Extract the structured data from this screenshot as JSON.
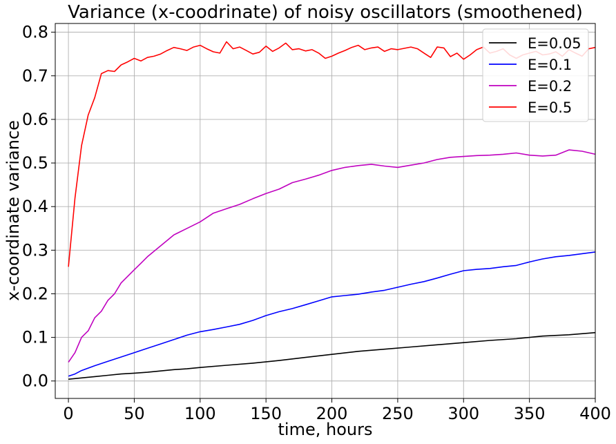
{
  "chart_data": {
    "type": "line",
    "title": "Variance (x-coodrinate) of noisy oscillators (smoothened)",
    "xlabel": "time, hours",
    "ylabel": "x-coordinate variance",
    "xlim": [
      -10,
      400
    ],
    "ylim": [
      -0.04,
      0.82
    ],
    "xticks": [
      0,
      50,
      100,
      150,
      200,
      250,
      300,
      350,
      400
    ],
    "yticks": [
      0.0,
      0.1,
      0.2,
      0.3,
      0.4,
      0.5,
      0.6,
      0.7,
      0.8
    ],
    "xtick_labels": [
      "0",
      "50",
      "100",
      "150",
      "200",
      "250",
      "300",
      "350",
      "400"
    ],
    "ytick_labels": [
      "0.0",
      "0.1",
      "0.2",
      "0.3",
      "0.4",
      "0.5",
      "0.6",
      "0.7",
      "0.8"
    ],
    "grid": true,
    "legend_position": "top-right",
    "series": [
      {
        "name": "E=0.05",
        "color": "#000000",
        "x": [
          0,
          10,
          20,
          30,
          40,
          50,
          60,
          70,
          80,
          90,
          100,
          120,
          140,
          160,
          180,
          200,
          220,
          240,
          260,
          280,
          300,
          320,
          340,
          360,
          380,
          400
        ],
        "y": [
          0.004,
          0.007,
          0.01,
          0.013,
          0.016,
          0.018,
          0.02,
          0.023,
          0.026,
          0.028,
          0.031,
          0.036,
          0.041,
          0.047,
          0.054,
          0.061,
          0.068,
          0.073,
          0.078,
          0.083,
          0.088,
          0.093,
          0.097,
          0.103,
          0.106,
          0.111
        ]
      },
      {
        "name": "E=0.1",
        "color": "#0000ff",
        "x": [
          0,
          5,
          10,
          20,
          30,
          40,
          50,
          60,
          70,
          80,
          90,
          100,
          110,
          120,
          130,
          140,
          150,
          160,
          170,
          180,
          190,
          200,
          210,
          220,
          230,
          240,
          250,
          260,
          270,
          280,
          290,
          300,
          310,
          320,
          330,
          340,
          350,
          360,
          370,
          380,
          390,
          400
        ],
        "y": [
          0.011,
          0.016,
          0.024,
          0.035,
          0.045,
          0.055,
          0.065,
          0.075,
          0.085,
          0.095,
          0.105,
          0.113,
          0.118,
          0.124,
          0.13,
          0.139,
          0.15,
          0.159,
          0.166,
          0.175,
          0.184,
          0.193,
          0.196,
          0.199,
          0.204,
          0.208,
          0.215,
          0.222,
          0.228,
          0.236,
          0.245,
          0.253,
          0.256,
          0.258,
          0.262,
          0.265,
          0.273,
          0.28,
          0.285,
          0.288,
          0.292,
          0.296
        ]
      },
      {
        "name": "E=0.2",
        "color": "#bf00bf",
        "x": [
          0,
          5,
          10,
          15,
          20,
          25,
          30,
          35,
          40,
          45,
          50,
          55,
          60,
          70,
          80,
          90,
          100,
          110,
          120,
          130,
          140,
          150,
          160,
          170,
          180,
          190,
          200,
          210,
          220,
          230,
          240,
          250,
          260,
          270,
          280,
          290,
          300,
          310,
          320,
          330,
          340,
          350,
          360,
          370,
          380,
          390,
          400
        ],
        "y": [
          0.043,
          0.065,
          0.1,
          0.115,
          0.145,
          0.16,
          0.185,
          0.2,
          0.225,
          0.24,
          0.255,
          0.27,
          0.285,
          0.31,
          0.335,
          0.35,
          0.365,
          0.385,
          0.395,
          0.405,
          0.418,
          0.43,
          0.44,
          0.455,
          0.463,
          0.472,
          0.483,
          0.49,
          0.494,
          0.497,
          0.493,
          0.49,
          0.495,
          0.5,
          0.508,
          0.513,
          0.515,
          0.517,
          0.518,
          0.52,
          0.523,
          0.518,
          0.516,
          0.518,
          0.53,
          0.527,
          0.52
        ]
      },
      {
        "name": "E=0.5",
        "color": "#ff0000",
        "x": [
          0,
          5,
          10,
          15,
          20,
          25,
          30,
          35,
          40,
          45,
          50,
          55,
          60,
          65,
          70,
          75,
          80,
          85,
          90,
          95,
          100,
          105,
          110,
          115,
          120,
          125,
          130,
          135,
          140,
          145,
          150,
          155,
          160,
          165,
          170,
          175,
          180,
          185,
          190,
          195,
          200,
          205,
          210,
          215,
          220,
          225,
          230,
          235,
          240,
          245,
          250,
          255,
          260,
          265,
          270,
          275,
          280,
          285,
          290,
          295,
          300,
          305,
          310,
          315,
          320,
          325,
          330,
          335,
          340,
          345,
          350,
          355,
          360,
          365,
          370,
          375,
          380,
          385,
          390,
          395,
          400
        ],
        "y": [
          0.262,
          0.42,
          0.54,
          0.61,
          0.65,
          0.705,
          0.712,
          0.71,
          0.725,
          0.732,
          0.74,
          0.734,
          0.742,
          0.745,
          0.75,
          0.758,
          0.765,
          0.762,
          0.758,
          0.766,
          0.77,
          0.762,
          0.755,
          0.752,
          0.778,
          0.762,
          0.766,
          0.758,
          0.75,
          0.754,
          0.768,
          0.756,
          0.764,
          0.775,
          0.76,
          0.762,
          0.757,
          0.76,
          0.752,
          0.74,
          0.745,
          0.752,
          0.758,
          0.765,
          0.77,
          0.76,
          0.764,
          0.766,
          0.756,
          0.762,
          0.76,
          0.763,
          0.766,
          0.762,
          0.752,
          0.742,
          0.766,
          0.764,
          0.744,
          0.752,
          0.738,
          0.748,
          0.76,
          0.766,
          0.752,
          0.756,
          0.762,
          0.748,
          0.74,
          0.748,
          0.752,
          0.756,
          0.748,
          0.75,
          0.755,
          0.745,
          0.76,
          0.752,
          0.745,
          0.762,
          0.765
        ]
      }
    ]
  }
}
